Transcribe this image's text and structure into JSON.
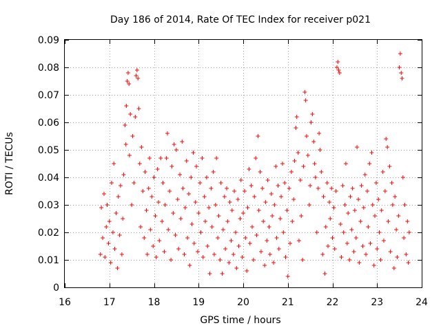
{
  "chart_data": {
    "type": "scatter",
    "title": "Day 186 of 2014, Rate Of TEC Index for receiver p021",
    "xlabel": "GPS time / hours",
    "ylabel": "ROTI / TECUs",
    "xlim": [
      16,
      24
    ],
    "ylim": [
      0,
      0.09
    ],
    "x_ticks": [
      "16",
      "17",
      "18",
      "19",
      "20",
      "21",
      "22",
      "23",
      "24"
    ],
    "y_ticks": [
      "0",
      "0.01",
      "0.02",
      "0.03",
      "0.04",
      "0.05",
      "0.06",
      "0.07",
      "0.08",
      "0.09"
    ],
    "grid": true,
    "marker": "+",
    "series_color": "#ff0000",
    "series": [
      {
        "name": "p021",
        "points": [
          [
            16.8,
            0.012
          ],
          [
            16.82,
            0.029
          ],
          [
            16.85,
            0.018
          ],
          [
            16.88,
            0.034
          ],
          [
            16.9,
            0.011
          ],
          [
            16.93,
            0.022
          ],
          [
            16.95,
            0.03
          ],
          [
            16.98,
            0.016
          ],
          [
            17.0,
            0.024
          ],
          [
            17.03,
            0.009
          ],
          [
            17.05,
            0.038
          ],
          [
            17.08,
            0.02
          ],
          [
            17.1,
            0.045
          ],
          [
            17.12,
            0.014
          ],
          [
            17.15,
            0.027
          ],
          [
            17.18,
            0.007
          ],
          [
            17.2,
            0.033
          ],
          [
            17.23,
            0.019
          ],
          [
            17.25,
            0.037
          ],
          [
            17.28,
            0.012
          ],
          [
            17.3,
            0.025
          ],
          [
            17.32,
            0.041
          ],
          [
            17.35,
            0.059
          ],
          [
            17.37,
            0.052
          ],
          [
            17.38,
            0.066
          ],
          [
            17.4,
            0.075
          ],
          [
            17.42,
            0.078
          ],
          [
            17.44,
            0.074
          ],
          [
            17.45,
            0.048
          ],
          [
            17.47,
            0.063
          ],
          [
            17.5,
            0.03
          ],
          [
            17.52,
            0.055
          ],
          [
            17.55,
            0.038
          ],
          [
            17.58,
            0.062
          ],
          [
            17.6,
            0.077
          ],
          [
            17.62,
            0.079
          ],
          [
            17.64,
            0.076
          ],
          [
            17.66,
            0.065
          ],
          [
            17.68,
            0.045
          ],
          [
            17.7,
            0.022
          ],
          [
            17.72,
            0.051
          ],
          [
            17.75,
            0.035
          ],
          [
            17.78,
            0.018
          ],
          [
            17.8,
            0.042
          ],
          [
            17.83,
            0.028
          ],
          [
            17.85,
            0.012
          ],
          [
            17.88,
            0.036
          ],
          [
            17.9,
            0.047
          ],
          [
            17.92,
            0.021
          ],
          [
            17.95,
            0.033
          ],
          [
            17.98,
            0.015
          ],
          [
            18.0,
            0.04
          ],
          [
            18.03,
            0.026
          ],
          [
            18.05,
            0.011
          ],
          [
            18.08,
            0.043
          ],
          [
            18.1,
            0.031
          ],
          [
            18.12,
            0.017
          ],
          [
            18.15,
            0.047
          ],
          [
            18.18,
            0.024
          ],
          [
            18.2,
            0.038
          ],
          [
            18.23,
            0.013
          ],
          [
            18.25,
            0.03
          ],
          [
            18.28,
            0.047
          ],
          [
            18.3,
            0.056
          ],
          [
            18.32,
            0.021
          ],
          [
            18.35,
            0.035
          ],
          [
            18.38,
            0.01
          ],
          [
            18.4,
            0.044
          ],
          [
            18.43,
            0.027
          ],
          [
            18.45,
            0.052
          ],
          [
            18.48,
            0.019
          ],
          [
            18.5,
            0.05
          ],
          [
            18.53,
            0.032
          ],
          [
            18.55,
            0.014
          ],
          [
            18.58,
            0.041
          ],
          [
            18.6,
            0.025
          ],
          [
            18.63,
            0.053
          ],
          [
            18.65,
            0.036
          ],
          [
            18.68,
            0.012
          ],
          [
            18.7,
            0.029
          ],
          [
            18.73,
            0.046
          ],
          [
            18.75,
            0.018
          ],
          [
            18.78,
            0.034
          ],
          [
            18.8,
            0.008
          ],
          [
            18.83,
            0.04
          ],
          [
            18.85,
            0.023
          ],
          [
            18.88,
            0.049
          ],
          [
            18.9,
            0.016
          ],
          [
            18.93,
            0.031
          ],
          [
            18.95,
            0.044
          ],
          [
            18.98,
            0.013
          ],
          [
            19.0,
            0.027
          ],
          [
            19.03,
            0.038
          ],
          [
            19.05,
            0.02
          ],
          [
            19.08,
            0.047
          ],
          [
            19.1,
            0.011
          ],
          [
            19.13,
            0.033
          ],
          [
            19.15,
            0.024
          ],
          [
            19.18,
            0.04
          ],
          [
            19.2,
            0.015
          ],
          [
            19.23,
            0.029
          ],
          [
            19.25,
            0.005
          ],
          [
            19.28,
            0.036
          ],
          [
            19.3,
            0.022
          ],
          [
            19.33,
            0.042
          ],
          [
            19.35,
            0.012
          ],
          [
            19.38,
            0.03
          ],
          [
            19.4,
            0.047
          ],
          [
            19.43,
            0.018
          ],
          [
            19.45,
            0.026
          ],
          [
            19.48,
            0.01
          ],
          [
            19.5,
            0.038
          ],
          [
            19.53,
            0.005
          ],
          [
            19.55,
            0.021
          ],
          [
            19.58,
            0.033
          ],
          [
            19.6,
            0.014
          ],
          [
            19.63,
            0.036
          ],
          [
            19.65,
            0.024
          ],
          [
            19.68,
            0.009
          ],
          [
            19.7,
            0.031
          ],
          [
            19.73,
            0.017
          ],
          [
            19.75,
            0.028
          ],
          [
            19.78,
            0.012
          ],
          [
            19.8,
            0.035
          ],
          [
            19.83,
            0.02
          ],
          [
            19.85,
            0.007
          ],
          [
            19.88,
            0.032
          ],
          [
            19.9,
            0.015
          ],
          [
            19.93,
            0.025
          ],
          [
            19.95,
            0.039
          ],
          [
            19.98,
            0.011
          ],
          [
            20.0,
            0.027
          ],
          [
            20.03,
            0.035
          ],
          [
            20.05,
            0.018
          ],
          [
            20.08,
            0.006
          ],
          [
            20.1,
            0.029
          ],
          [
            20.13,
            0.043
          ],
          [
            20.15,
            0.016
          ],
          [
            20.18,
            0.037
          ],
          [
            20.2,
            0.022
          ],
          [
            20.23,
            0.01
          ],
          [
            20.25,
            0.033
          ],
          [
            20.28,
            0.047
          ],
          [
            20.3,
            0.019
          ],
          [
            20.33,
            0.055
          ],
          [
            20.35,
            0.028
          ],
          [
            20.38,
            0.042
          ],
          [
            20.4,
            0.013
          ],
          [
            20.43,
            0.036
          ],
          [
            20.45,
            0.024
          ],
          [
            20.48,
            0.008
          ],
          [
            20.5,
            0.031
          ],
          [
            20.53,
            0.017
          ],
          [
            20.55,
            0.039
          ],
          [
            20.58,
            0.022
          ],
          [
            20.6,
            0.012
          ],
          [
            20.63,
            0.034
          ],
          [
            20.65,
            0.026
          ],
          [
            20.68,
            0.009
          ],
          [
            20.7,
            0.03
          ],
          [
            20.73,
            0.044
          ],
          [
            20.75,
            0.018
          ],
          [
            20.78,
            0.037
          ],
          [
            20.8,
            0.014
          ],
          [
            20.83,
            0.025
          ],
          [
            20.85,
            0.033
          ],
          [
            20.88,
            0.045
          ],
          [
            20.9,
            0.02
          ],
          [
            20.93,
            0.038
          ],
          [
            20.95,
            0.011
          ],
          [
            20.98,
            0.028
          ],
          [
            21.0,
            0.004
          ],
          [
            21.03,
            0.036
          ],
          [
            21.05,
            0.016
          ],
          [
            21.08,
            0.042
          ],
          [
            21.1,
            0.024
          ],
          [
            21.13,
            0.032
          ],
          [
            21.15,
            0.046
          ],
          [
            21.18,
            0.058
          ],
          [
            21.2,
            0.062
          ],
          [
            21.23,
            0.049
          ],
          [
            21.25,
            0.017
          ],
          [
            21.28,
            0.039
          ],
          [
            21.3,
            0.026
          ],
          [
            21.33,
            0.01
          ],
          [
            21.35,
            0.044
          ],
          [
            21.38,
            0.071
          ],
          [
            21.4,
            0.068
          ],
          [
            21.42,
            0.055
          ],
          [
            21.45,
            0.048
          ],
          [
            21.48,
            0.03
          ],
          [
            21.5,
            0.037
          ],
          [
            21.52,
            0.06
          ],
          [
            21.55,
            0.063
          ],
          [
            21.58,
            0.053
          ],
          [
            21.6,
            0.045
          ],
          [
            21.62,
            0.04
          ],
          [
            21.65,
            0.02
          ],
          [
            21.68,
            0.036
          ],
          [
            21.7,
            0.056
          ],
          [
            21.72,
            0.05
          ],
          [
            21.75,
            0.042
          ],
          [
            21.78,
            0.012
          ],
          [
            21.8,
            0.033
          ],
          [
            21.83,
            0.005
          ],
          [
            21.85,
            0.022
          ],
          [
            21.88,
            0.038
          ],
          [
            21.9,
            0.015
          ],
          [
            21.93,
            0.031
          ],
          [
            21.95,
            0.025
          ],
          [
            21.98,
            0.036
          ],
          [
            22.0,
            0.018
          ],
          [
            22.03,
            0.029
          ],
          [
            22.05,
            0.014
          ],
          [
            22.08,
            0.035
          ],
          [
            22.1,
            0.08
          ],
          [
            22.12,
            0.082
          ],
          [
            22.14,
            0.079
          ],
          [
            22.16,
            0.078
          ],
          [
            22.18,
            0.023
          ],
          [
            22.2,
            0.011
          ],
          [
            22.23,
            0.037
          ],
          [
            22.25,
            0.02
          ],
          [
            22.28,
            0.03
          ],
          [
            22.3,
            0.045
          ],
          [
            22.33,
            0.016
          ],
          [
            22.35,
            0.027
          ],
          [
            22.38,
            0.01
          ],
          [
            22.4,
            0.033
          ],
          [
            22.43,
            0.021
          ],
          [
            22.45,
            0.036
          ],
          [
            22.48,
            0.013
          ],
          [
            22.5,
            0.028
          ],
          [
            22.53,
            0.018
          ],
          [
            22.55,
            0.051
          ],
          [
            22.58,
            0.032
          ],
          [
            22.6,
            0.009
          ],
          [
            22.63,
            0.024
          ],
          [
            22.65,
            0.037
          ],
          [
            22.68,
            0.015
          ],
          [
            22.7,
            0.029
          ],
          [
            22.73,
            0.041
          ],
          [
            22.75,
            0.012
          ],
          [
            22.78,
            0.035
          ],
          [
            22.8,
            0.022
          ],
          [
            22.83,
            0.045
          ],
          [
            22.85,
            0.016
          ],
          [
            22.88,
            0.049
          ],
          [
            22.9,
            0.03
          ],
          [
            22.93,
            0.008
          ],
          [
            22.95,
            0.026
          ],
          [
            22.98,
            0.038
          ],
          [
            23.0,
            0.014
          ],
          [
            23.03,
            0.032
          ],
          [
            23.05,
            0.02
          ],
          [
            23.08,
            0.01
          ],
          [
            23.1,
            0.028
          ],
          [
            23.13,
            0.042
          ],
          [
            23.15,
            0.017
          ],
          [
            23.18,
            0.035
          ],
          [
            23.2,
            0.054
          ],
          [
            23.23,
            0.051
          ],
          [
            23.25,
            0.024
          ],
          [
            23.28,
            0.044
          ],
          [
            23.3,
            0.013
          ],
          [
            23.33,
            0.038
          ],
          [
            23.35,
            0.03
          ],
          [
            23.38,
            0.007
          ],
          [
            23.4,
            0.033
          ],
          [
            23.43,
            0.021
          ],
          [
            23.45,
            0.011
          ],
          [
            23.48,
            0.026
          ],
          [
            23.5,
            0.08
          ],
          [
            23.52,
            0.085
          ],
          [
            23.54,
            0.078
          ],
          [
            23.56,
            0.076
          ],
          [
            23.58,
            0.04
          ],
          [
            23.6,
            0.018
          ],
          [
            23.62,
            0.03
          ],
          [
            23.65,
            0.012
          ],
          [
            23.68,
            0.024
          ],
          [
            23.7,
            0.009
          ],
          [
            23.72,
            0.02
          ]
        ]
      }
    ]
  }
}
